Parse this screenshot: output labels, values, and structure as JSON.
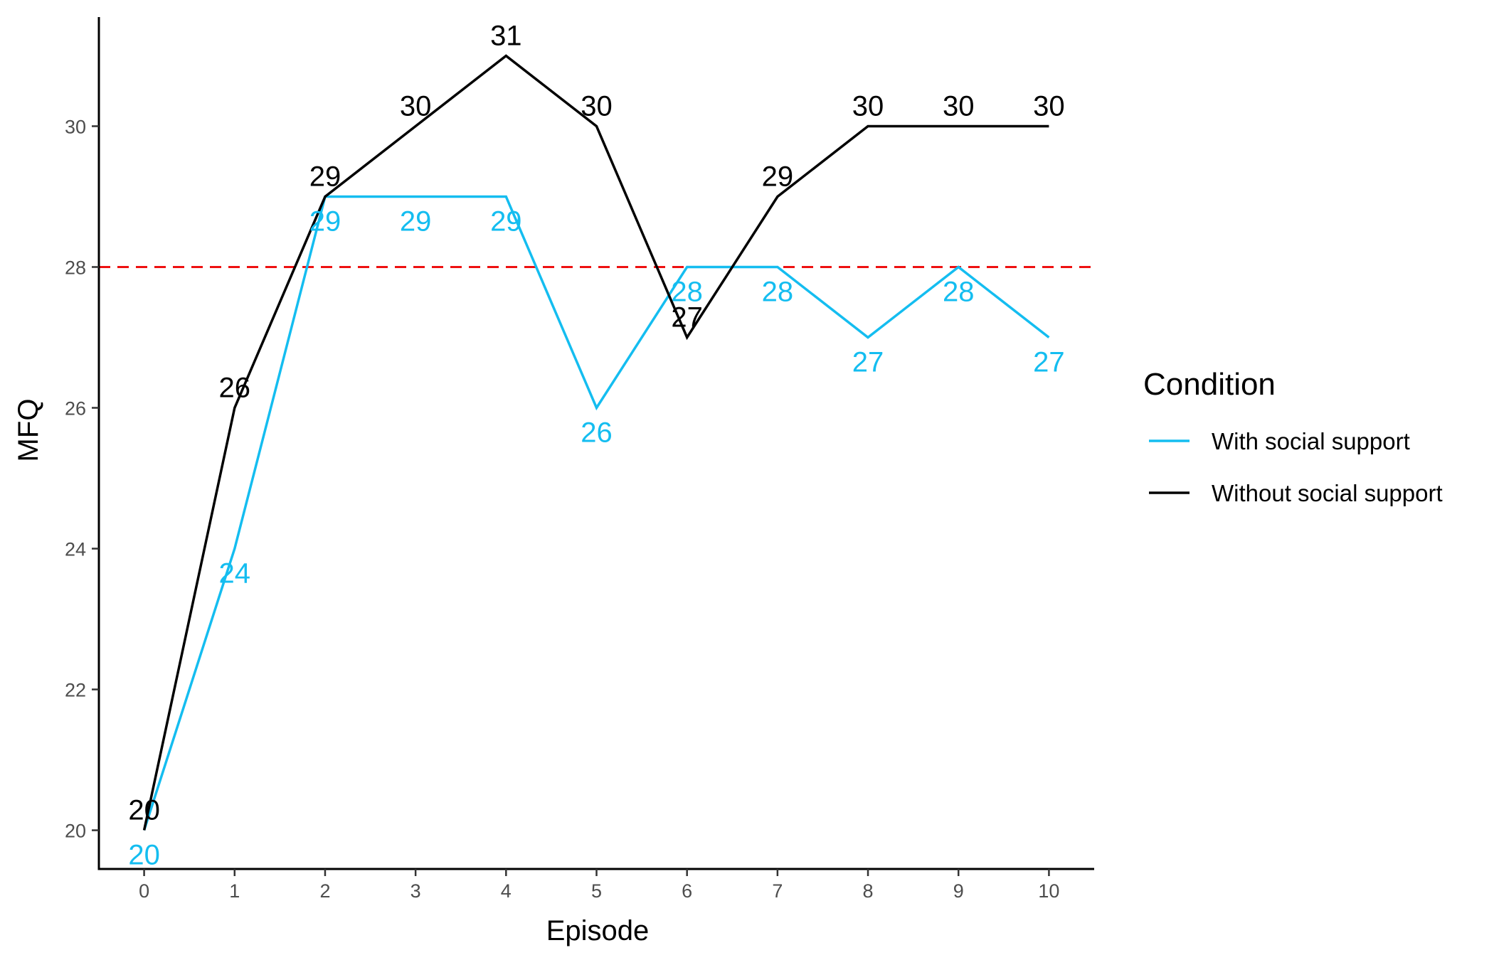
{
  "chart_data": {
    "type": "line",
    "xlabel": "Episode",
    "ylabel": "MFQ",
    "x": [
      0,
      1,
      2,
      3,
      4,
      5,
      6,
      7,
      8,
      9,
      10
    ],
    "x_ticks": [
      0,
      1,
      2,
      3,
      4,
      5,
      6,
      7,
      8,
      9,
      10
    ],
    "y_ticks": [
      20,
      22,
      24,
      26,
      28,
      30
    ],
    "xlim": [
      -0.5,
      10.5
    ],
    "ylim": [
      19.45,
      31.55
    ],
    "grid": false,
    "reference_line": {
      "y": 28,
      "style": "dashed",
      "color": "#ee1111"
    },
    "legend": {
      "title": "Condition",
      "position": "right"
    },
    "series": [
      {
        "name": "With social support",
        "color": "#14bdf0",
        "values": [
          20,
          24,
          29,
          29,
          29,
          26,
          28,
          28,
          27,
          28,
          27
        ],
        "label_position": "below"
      },
      {
        "name": "Without social support",
        "color": "#000000",
        "values": [
          20,
          26,
          29,
          30,
          31,
          30,
          27,
          29,
          30,
          30,
          30
        ],
        "label_position": "above"
      }
    ]
  }
}
